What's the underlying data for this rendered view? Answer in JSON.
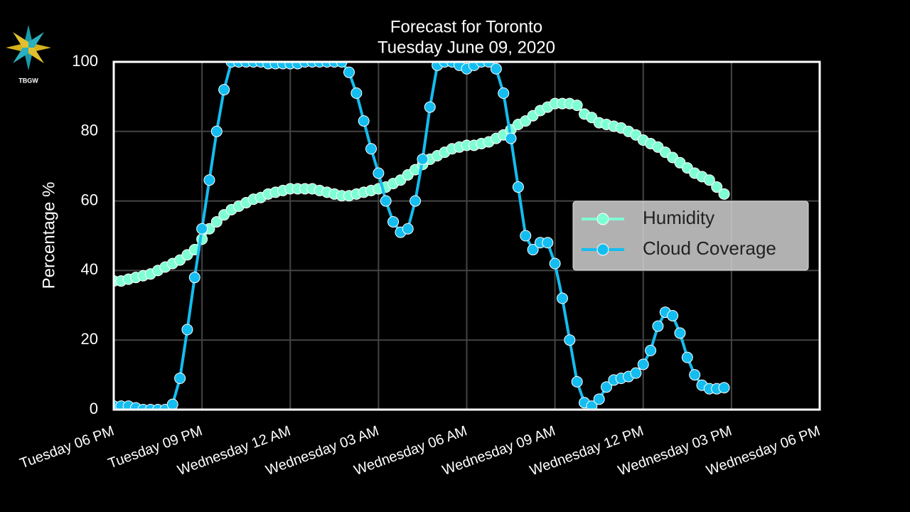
{
  "logo": {
    "text": "TBGW"
  },
  "chart_data": {
    "type": "line",
    "title": "Forecast for Toronto",
    "subtitle": "Tuesday June 09, 2020",
    "y_label": "Percentage %",
    "x": [
      0,
      0.25,
      0.5,
      0.75,
      1,
      1.25,
      1.5,
      1.75,
      2,
      2.25,
      2.5,
      2.75,
      3,
      3.25,
      3.5,
      3.75,
      4,
      4.25,
      4.5,
      4.75,
      5,
      5.25,
      5.5,
      5.75,
      6,
      6.25,
      6.5,
      6.75,
      7,
      7.25,
      7.5,
      7.75,
      8,
      8.25,
      8.5,
      8.75,
      9,
      9.25,
      9.5,
      9.75,
      10,
      10.25,
      10.5,
      10.75,
      11,
      11.25,
      11.5,
      11.75,
      12,
      12.25,
      12.5,
      12.75,
      13,
      13.25,
      13.5,
      13.75,
      14,
      14.25,
      14.5,
      14.75,
      15,
      15.25,
      15.5,
      15.75,
      16,
      16.25,
      16.5,
      16.75,
      17,
      17.25,
      17.5,
      17.75,
      18,
      18.25,
      18.5,
      18.75,
      19,
      19.25,
      19.5,
      19.75,
      20,
      20.25,
      20.5,
      20.75
    ],
    "series": [
      {
        "name": "Humidity",
        "color": "#7fffd4",
        "values": [
          37,
          37,
          37.5,
          38,
          38.5,
          39,
          40,
          41,
          42,
          43,
          44.5,
          46,
          49,
          52,
          54,
          56,
          57.5,
          58.5,
          59.5,
          60.5,
          61,
          62,
          62.5,
          63,
          63.5,
          63.5,
          63.5,
          63.5,
          63,
          62.5,
          62,
          61.5,
          61.5,
          62,
          62.5,
          63,
          63.5,
          64,
          65,
          66,
          67.5,
          69,
          70.5,
          72,
          73,
          74,
          75,
          75.5,
          76,
          76,
          76.5,
          77,
          78,
          79,
          80.5,
          82,
          83,
          84.5,
          86,
          87,
          88,
          88,
          88,
          87.5,
          85,
          84,
          82.5,
          82,
          81.5,
          81,
          80,
          79,
          77.5,
          76.5,
          75.5,
          74,
          72.5,
          71,
          69.5,
          68,
          67,
          66,
          64,
          62
        ]
      },
      {
        "name": "Cloud Coverage",
        "color": "#14bdf0",
        "values": [
          1,
          1,
          1,
          0.5,
          0,
          0,
          0,
          0,
          1.5,
          9,
          23,
          38,
          52,
          66,
          80,
          92,
          100,
          100,
          100,
          100,
          100,
          99.5,
          99.5,
          99.5,
          99.5,
          99.5,
          100,
          100,
          100,
          100,
          100,
          100,
          97,
          91,
          83,
          75,
          68,
          60,
          54,
          51,
          52,
          60,
          72,
          87,
          99,
          100,
          100,
          99,
          98,
          99,
          100,
          100,
          98,
          91,
          78,
          64,
          50,
          46,
          48,
          48,
          42,
          32,
          20,
          8,
          2,
          1,
          3,
          6.5,
          8.5,
          9,
          9.5,
          10.5,
          13,
          17,
          24,
          28,
          27,
          22,
          15,
          10,
          7,
          6,
          6,
          6.3
        ]
      }
    ],
    "xlim": [
      0,
      24
    ],
    "xticks": [
      {
        "value": 0,
        "label": "Tuesday 06 PM"
      },
      {
        "value": 3,
        "label": "Tuesday 09 PM"
      },
      {
        "value": 6,
        "label": "Wednesday 12 AM"
      },
      {
        "value": 9,
        "label": "Wednesday 03 AM"
      },
      {
        "value": 12,
        "label": "Wednesday 06 AM"
      },
      {
        "value": 15,
        "label": "Wednesday 09 AM"
      },
      {
        "value": 18,
        "label": "Wednesday 12 PM"
      },
      {
        "value": 21,
        "label": "Wednesday 03 PM"
      },
      {
        "value": 24,
        "label": "Wednesday 06 PM"
      }
    ],
    "ylim": [
      0,
      100
    ],
    "yticks": [
      0,
      20,
      40,
      60,
      80,
      100
    ],
    "grid": true,
    "legend_position": "center right"
  }
}
